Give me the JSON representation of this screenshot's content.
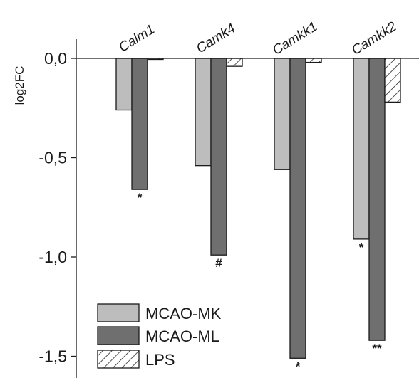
{
  "chart_data": {
    "type": "bar",
    "title": "",
    "xlabel": "",
    "ylabel": "log2FC",
    "ylim": [
      -1.55,
      0.1
    ],
    "yticks": [
      0.0,
      -0.5,
      -1.0,
      -1.5
    ],
    "ytick_labels": [
      "0,0",
      "-0,5",
      "-1,0",
      "-1,5"
    ],
    "categories": [
      "Calm1",
      "Camk4",
      "Camkk1",
      "Camkk2"
    ],
    "series": [
      {
        "name": "MCAO-MK",
        "fill": "#bdbdbd",
        "pattern": "solid",
        "values": [
          -0.26,
          -0.54,
          -0.56,
          -0.91
        ],
        "significance": [
          "",
          "",
          "",
          "*"
        ]
      },
      {
        "name": "MCAO-ML",
        "fill": "#6f6f6f",
        "pattern": "solid",
        "values": [
          -0.66,
          -0.99,
          -1.51,
          -1.42
        ],
        "significance": [
          "*",
          "#",
          "*",
          "**"
        ]
      },
      {
        "name": "LPS",
        "fill": "#ffffff",
        "pattern": "hatch",
        "values": [
          0.0,
          -0.04,
          -0.02,
          -0.22
        ],
        "significance": [
          "",
          "",
          "",
          ""
        ]
      }
    ],
    "legend": {
      "position": "bottom-left",
      "entries": [
        "MCAO-MK",
        "MCAO-ML",
        "LPS"
      ]
    },
    "grid": false,
    "colors": {
      "outline": "#1a1a1a",
      "background": "#ffffff"
    }
  }
}
